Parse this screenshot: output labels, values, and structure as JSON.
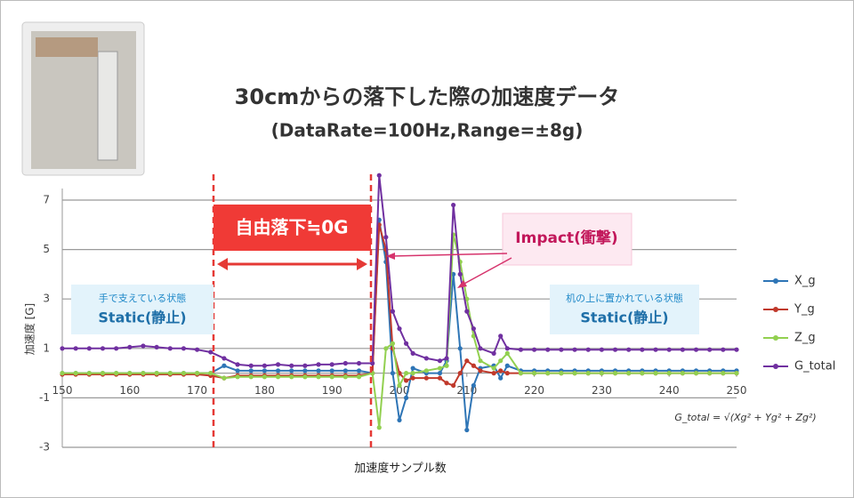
{
  "chart_data": {
    "type": "line",
    "title": "30cmからの落下した際の加速度データ",
    "subtitle": "(DataRate=100Hz,Range=±8g)",
    "x_label": "加速度サンプル数",
    "y_label": "加速度 [G]",
    "formula": "G_total = √(Xg² + Yg² + Zg²)",
    "annotations": {
      "free_fall": "自由落下≒0G",
      "impact": "Impact(衝撃)",
      "static_hand_note": "手で支えている状態",
      "static_hand": "Static(静止)",
      "static_desk_note": "机の上に置かれている状態",
      "static_desk": "Static(静止)"
    },
    "xlim": [
      150,
      250
    ],
    "xticks": [
      150,
      160,
      170,
      180,
      190,
      200,
      210,
      220,
      230,
      240,
      250
    ],
    "ylim": [
      -3,
      7
    ],
    "yticks": [
      7,
      5,
      3,
      1,
      -1,
      -3
    ],
    "grid": true,
    "legend": "right",
    "x": [
      150,
      152,
      154,
      156,
      158,
      160,
      162,
      164,
      166,
      168,
      170,
      172,
      174,
      176,
      178,
      180,
      182,
      184,
      186,
      188,
      190,
      192,
      194,
      196,
      197,
      198,
      199,
      200,
      201,
      202,
      204,
      206,
      207,
      208,
      209,
      210,
      211,
      212,
      214,
      215,
      216,
      218,
      220,
      222,
      224,
      226,
      228,
      230,
      232,
      234,
      236,
      238,
      240,
      242,
      244,
      246,
      248,
      250
    ],
    "series": [
      {
        "name": "X_g",
        "color": "#2e75b6",
        "values": [
          0,
          0,
          0,
          0,
          0,
          0,
          0,
          0,
          0,
          0,
          0,
          0,
          0.3,
          0.1,
          0.1,
          0.1,
          0.1,
          0.1,
          0.1,
          0.1,
          0.1,
          0.1,
          0.1,
          0,
          6.2,
          4.5,
          0,
          -1.9,
          -1,
          0.2,
          0,
          0,
          0.5,
          4,
          1,
          -2.3,
          -0.5,
          0.2,
          0.3,
          -0.2,
          0.3,
          0.1,
          0.1,
          0.1,
          0.1,
          0.1,
          0.1,
          0.1,
          0.1,
          0.1,
          0.1,
          0.1,
          0.1,
          0.1,
          0.1,
          0.1,
          0.1,
          0.1
        ]
      },
      {
        "name": "Y_g",
        "color": "#c0392b",
        "values": [
          -0.05,
          -0.05,
          -0.05,
          -0.05,
          -0.05,
          -0.05,
          -0.05,
          -0.05,
          -0.05,
          -0.05,
          -0.05,
          -0.1,
          -0.2,
          -0.1,
          -0.1,
          -0.1,
          -0.1,
          -0.1,
          -0.1,
          -0.1,
          -0.1,
          -0.1,
          -0.1,
          0,
          6,
          5,
          1,
          0,
          -0.3,
          -0.2,
          -0.2,
          -0.2,
          -0.4,
          -0.5,
          0,
          0.5,
          0.3,
          0.1,
          0,
          0.1,
          0,
          0,
          0,
          0,
          0,
          0,
          0,
          0,
          0,
          0,
          0,
          0,
          0,
          0,
          0,
          0,
          0,
          0
        ]
      },
      {
        "name": "Z_g",
        "color": "#92d050",
        "values": [
          0,
          0,
          0,
          0,
          0,
          0,
          0,
          0,
          0,
          0,
          0,
          0,
          -0.2,
          -0.15,
          -0.15,
          -0.15,
          -0.15,
          -0.15,
          -0.15,
          -0.15,
          -0.15,
          -0.15,
          -0.15,
          0,
          -2.2,
          1,
          1.2,
          -0.5,
          0,
          0,
          0.1,
          0.2,
          0.3,
          5.6,
          4.5,
          3,
          1.5,
          0.5,
          0.2,
          0.5,
          0.8,
          0,
          0,
          0,
          0,
          0,
          0,
          0,
          0,
          0,
          0,
          0,
          0,
          0,
          0,
          0,
          0,
          0
        ]
      },
      {
        "name": "G_total",
        "color": "#7030a0",
        "values": [
          1,
          1,
          1,
          1,
          1,
          1.05,
          1.1,
          1.05,
          1,
          1,
          0.95,
          0.85,
          0.6,
          0.35,
          0.3,
          0.3,
          0.35,
          0.3,
          0.3,
          0.35,
          0.35,
          0.4,
          0.4,
          0.4,
          8,
          5.5,
          2.5,
          1.8,
          1.2,
          0.8,
          0.6,
          0.5,
          0.6,
          6.8,
          4,
          2.5,
          1.8,
          1,
          0.8,
          1.5,
          1,
          0.95,
          0.95,
          0.95,
          0.95,
          0.95,
          0.95,
          0.95,
          0.95,
          0.95,
          0.95,
          0.95,
          0.95,
          0.95,
          0.95,
          0.95,
          0.95,
          0.95
        ]
      }
    ]
  }
}
